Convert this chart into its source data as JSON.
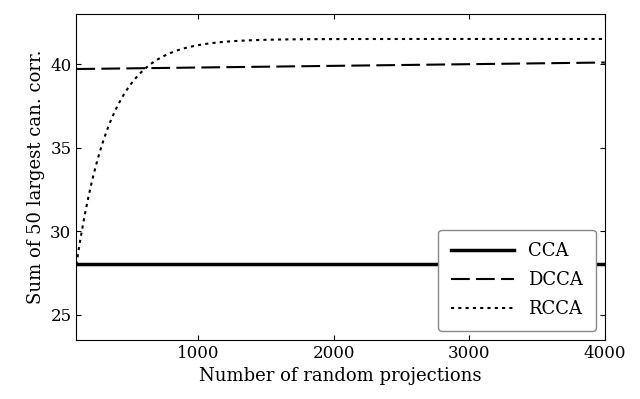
{
  "title": "",
  "xlabel": "Number of random projections",
  "ylabel": "Sum of 50 largest can. corr.",
  "xlim": [
    100,
    4000
  ],
  "ylim": [
    23.5,
    43.0
  ],
  "yticks": [
    25,
    30,
    35,
    40
  ],
  "xticks": [
    1000,
    2000,
    3000,
    4000
  ],
  "cca_value": 28.0,
  "dcca_value": 39.7,
  "rcca_asymptote": 41.5,
  "rcca_start": 28.0,
  "rcca_k": 0.004,
  "legend_labels": [
    "CCA",
    "DCCA",
    "RCCA"
  ],
  "background_color": "#ffffff",
  "plot_bg_color": "#ffffff",
  "line_color": "#000000",
  "font_family": "serif",
  "legend_loc": "lower right",
  "tick_labelsize": 12,
  "axis_labelsize": 13,
  "legend_fontsize": 13
}
